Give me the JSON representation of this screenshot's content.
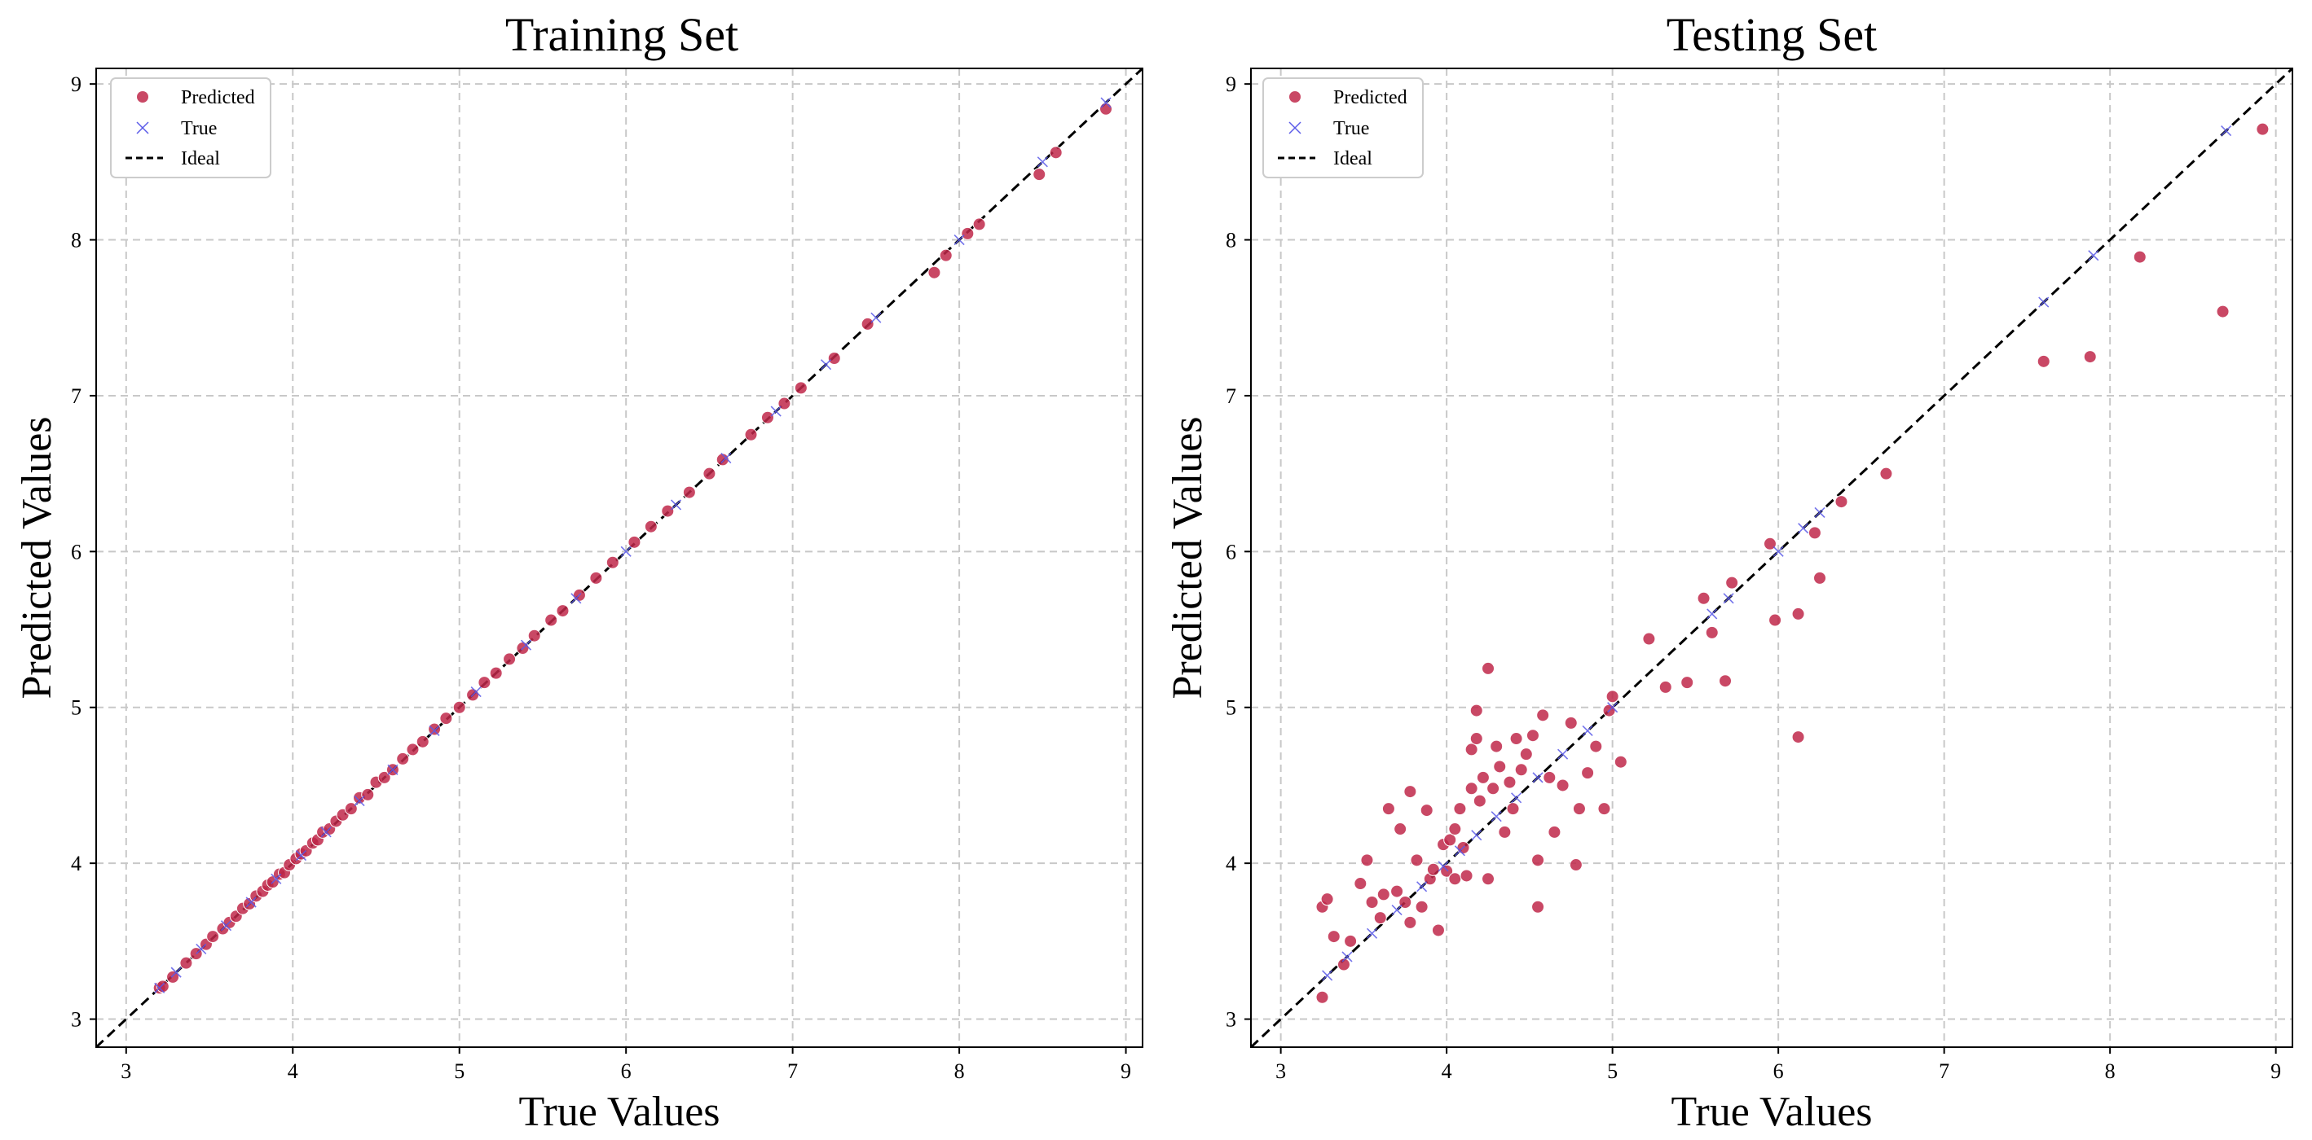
{
  "figure": {
    "background": "#ffffff"
  },
  "style": {
    "predicted_color": "#c0284a",
    "true_color": "#5b5be8",
    "ideal_color": "#000000",
    "grid_color": "#c8c8c8"
  },
  "legend": {
    "predicted_label": "Predicted",
    "true_label": "True",
    "ideal_label": "Ideal",
    "placement": "top-left"
  },
  "chart_data": [
    {
      "type": "scatter",
      "title": "Training Set",
      "xlabel": "True Values",
      "ylabel": "Predicted Values",
      "xlim": [
        2.82,
        9.1
      ],
      "ylim": [
        2.82,
        9.1
      ],
      "xticks": [
        "3",
        "4",
        "5",
        "6",
        "7",
        "8",
        "9"
      ],
      "yticks": [
        "3",
        "4",
        "5",
        "6",
        "7",
        "8",
        "9"
      ],
      "grid": true,
      "ideal_line": [
        [
          2.82,
          2.82
        ],
        [
          9.1,
          9.1
        ]
      ],
      "series": [
        {
          "name": "Predicted",
          "marker": "circle",
          "points": [
            [
              3.2,
              3.2
            ],
            [
              3.22,
              3.21
            ],
            [
              3.28,
              3.27
            ],
            [
              3.36,
              3.36
            ],
            [
              3.42,
              3.42
            ],
            [
              3.48,
              3.48
            ],
            [
              3.52,
              3.53
            ],
            [
              3.58,
              3.58
            ],
            [
              3.62,
              3.62
            ],
            [
              3.66,
              3.66
            ],
            [
              3.7,
              3.71
            ],
            [
              3.74,
              3.74
            ],
            [
              3.78,
              3.79
            ],
            [
              3.82,
              3.82
            ],
            [
              3.85,
              3.86
            ],
            [
              3.88,
              3.88
            ],
            [
              3.92,
              3.93
            ],
            [
              3.95,
              3.94
            ],
            [
              3.98,
              3.99
            ],
            [
              4.02,
              4.03
            ],
            [
              4.05,
              4.06
            ],
            [
              4.08,
              4.08
            ],
            [
              4.12,
              4.13
            ],
            [
              4.15,
              4.15
            ],
            [
              4.18,
              4.2
            ],
            [
              4.22,
              4.22
            ],
            [
              4.26,
              4.27
            ],
            [
              4.3,
              4.31
            ],
            [
              4.35,
              4.35
            ],
            [
              4.4,
              4.42
            ],
            [
              4.45,
              4.44
            ],
            [
              4.5,
              4.52
            ],
            [
              4.55,
              4.55
            ],
            [
              4.6,
              4.6
            ],
            [
              4.66,
              4.67
            ],
            [
              4.72,
              4.73
            ],
            [
              4.78,
              4.78
            ],
            [
              4.85,
              4.86
            ],
            [
              4.92,
              4.93
            ],
            [
              5.0,
              5.0
            ],
            [
              5.08,
              5.08
            ],
            [
              5.15,
              5.16
            ],
            [
              5.22,
              5.22
            ],
            [
              5.3,
              5.31
            ],
            [
              5.38,
              5.38
            ],
            [
              5.45,
              5.46
            ],
            [
              5.55,
              5.56
            ],
            [
              5.62,
              5.62
            ],
            [
              5.72,
              5.72
            ],
            [
              5.82,
              5.83
            ],
            [
              5.92,
              5.93
            ],
            [
              6.05,
              6.06
            ],
            [
              6.15,
              6.16
            ],
            [
              6.25,
              6.26
            ],
            [
              6.38,
              6.38
            ],
            [
              6.5,
              6.5
            ],
            [
              6.58,
              6.59
            ],
            [
              6.75,
              6.75
            ],
            [
              6.85,
              6.86
            ],
            [
              6.95,
              6.95
            ],
            [
              7.05,
              7.05
            ],
            [
              7.25,
              7.24
            ],
            [
              7.45,
              7.46
            ],
            [
              7.85,
              7.79
            ],
            [
              7.92,
              7.9
            ],
            [
              8.05,
              8.04
            ],
            [
              8.12,
              8.1
            ],
            [
              8.48,
              8.42
            ],
            [
              8.58,
              8.56
            ],
            [
              8.88,
              8.84
            ]
          ]
        },
        {
          "name": "True",
          "marker": "x",
          "points": [
            [
              3.2,
              3.2
            ],
            [
              3.3,
              3.3
            ],
            [
              3.45,
              3.45
            ],
            [
              3.6,
              3.6
            ],
            [
              3.75,
              3.75
            ],
            [
              3.9,
              3.9
            ],
            [
              4.05,
              4.05
            ],
            [
              4.2,
              4.2
            ],
            [
              4.4,
              4.4
            ],
            [
              4.6,
              4.6
            ],
            [
              4.85,
              4.85
            ],
            [
              5.1,
              5.1
            ],
            [
              5.4,
              5.4
            ],
            [
              5.7,
              5.7
            ],
            [
              6.0,
              6.0
            ],
            [
              6.3,
              6.3
            ],
            [
              6.6,
              6.6
            ],
            [
              6.9,
              6.9
            ],
            [
              7.2,
              7.2
            ],
            [
              7.5,
              7.5
            ],
            [
              8.0,
              8.0
            ],
            [
              8.5,
              8.5
            ],
            [
              8.88,
              8.88
            ]
          ]
        }
      ]
    },
    {
      "type": "scatter",
      "title": "Testing Set",
      "xlabel": "True Values",
      "ylabel": "Predicted Values",
      "xlim": [
        2.82,
        9.1
      ],
      "ylim": [
        2.82,
        9.1
      ],
      "xticks": [
        "3",
        "4",
        "5",
        "6",
        "7",
        "8",
        "9"
      ],
      "yticks": [
        "3",
        "4",
        "5",
        "6",
        "7",
        "8",
        "9"
      ],
      "grid": true,
      "ideal_line": [
        [
          2.82,
          2.82
        ],
        [
          9.1,
          9.1
        ]
      ],
      "series": [
        {
          "name": "Predicted",
          "marker": "circle",
          "points": [
            [
              3.25,
              3.14
            ],
            [
              3.25,
              3.72
            ],
            [
              3.28,
              3.77
            ],
            [
              3.32,
              3.53
            ],
            [
              3.38,
              3.35
            ],
            [
              3.42,
              3.5
            ],
            [
              3.48,
              3.87
            ],
            [
              3.52,
              4.02
            ],
            [
              3.55,
              3.75
            ],
            [
              3.6,
              3.65
            ],
            [
              3.62,
              3.8
            ],
            [
              3.65,
              4.35
            ],
            [
              3.7,
              3.82
            ],
            [
              3.72,
              4.22
            ],
            [
              3.75,
              3.75
            ],
            [
              3.78,
              3.62
            ],
            [
              3.78,
              4.46
            ],
            [
              3.82,
              4.02
            ],
            [
              3.85,
              3.72
            ],
            [
              3.88,
              4.34
            ],
            [
              3.9,
              3.9
            ],
            [
              3.92,
              3.96
            ],
            [
              3.95,
              3.57
            ],
            [
              3.98,
              4.12
            ],
            [
              4.0,
              3.95
            ],
            [
              4.02,
              4.15
            ],
            [
              4.05,
              3.9
            ],
            [
              4.05,
              4.22
            ],
            [
              4.08,
              4.35
            ],
            [
              4.1,
              4.1
            ],
            [
              4.12,
              3.92
            ],
            [
              4.15,
              4.48
            ],
            [
              4.15,
              4.73
            ],
            [
              4.18,
              4.98
            ],
            [
              4.18,
              4.8
            ],
            [
              4.2,
              4.4
            ],
            [
              4.22,
              4.55
            ],
            [
              4.25,
              5.25
            ],
            [
              4.25,
              3.9
            ],
            [
              4.28,
              4.48
            ],
            [
              4.3,
              4.75
            ],
            [
              4.32,
              4.62
            ],
            [
              4.35,
              4.2
            ],
            [
              4.38,
              4.52
            ],
            [
              4.4,
              4.35
            ],
            [
              4.42,
              4.8
            ],
            [
              4.45,
              4.6
            ],
            [
              4.48,
              4.7
            ],
            [
              4.52,
              4.82
            ],
            [
              4.55,
              3.72
            ],
            [
              4.55,
              4.02
            ],
            [
              4.58,
              4.95
            ],
            [
              4.62,
              4.55
            ],
            [
              4.65,
              4.2
            ],
            [
              4.7,
              4.5
            ],
            [
              4.75,
              4.9
            ],
            [
              4.78,
              3.99
            ],
            [
              4.8,
              4.35
            ],
            [
              4.85,
              4.58
            ],
            [
              4.9,
              4.75
            ],
            [
              4.95,
              4.35
            ],
            [
              4.98,
              4.98
            ],
            [
              5.0,
              5.07
            ],
            [
              5.05,
              4.65
            ],
            [
              5.22,
              5.44
            ],
            [
              5.32,
              5.13
            ],
            [
              5.45,
              5.16
            ],
            [
              5.55,
              5.7
            ],
            [
              5.6,
              5.48
            ],
            [
              5.68,
              5.17
            ],
            [
              5.72,
              5.8
            ],
            [
              5.95,
              6.05
            ],
            [
              5.98,
              5.56
            ],
            [
              6.12,
              5.6
            ],
            [
              6.12,
              4.81
            ],
            [
              6.22,
              6.12
            ],
            [
              6.25,
              5.83
            ],
            [
              6.38,
              6.32
            ],
            [
              6.65,
              6.5
            ],
            [
              7.6,
              7.22
            ],
            [
              7.88,
              7.25
            ],
            [
              8.18,
              7.89
            ],
            [
              8.68,
              7.54
            ],
            [
              8.92,
              8.71
            ]
          ]
        },
        {
          "name": "True",
          "marker": "x",
          "points": [
            [
              3.28,
              3.28
            ],
            [
              3.4,
              3.4
            ],
            [
              3.55,
              3.55
            ],
            [
              3.7,
              3.7
            ],
            [
              3.85,
              3.85
            ],
            [
              3.98,
              3.98
            ],
            [
              4.08,
              4.08
            ],
            [
              4.18,
              4.18
            ],
            [
              4.3,
              4.3
            ],
            [
              4.42,
              4.42
            ],
            [
              4.55,
              4.55
            ],
            [
              4.7,
              4.7
            ],
            [
              4.85,
              4.85
            ],
            [
              5.0,
              5.0
            ],
            [
              5.6,
              5.6
            ],
            [
              5.7,
              5.7
            ],
            [
              6.0,
              6.0
            ],
            [
              6.15,
              6.15
            ],
            [
              6.25,
              6.25
            ],
            [
              7.6,
              7.6
            ],
            [
              7.9,
              7.9
            ],
            [
              8.7,
              8.7
            ]
          ]
        }
      ]
    }
  ]
}
